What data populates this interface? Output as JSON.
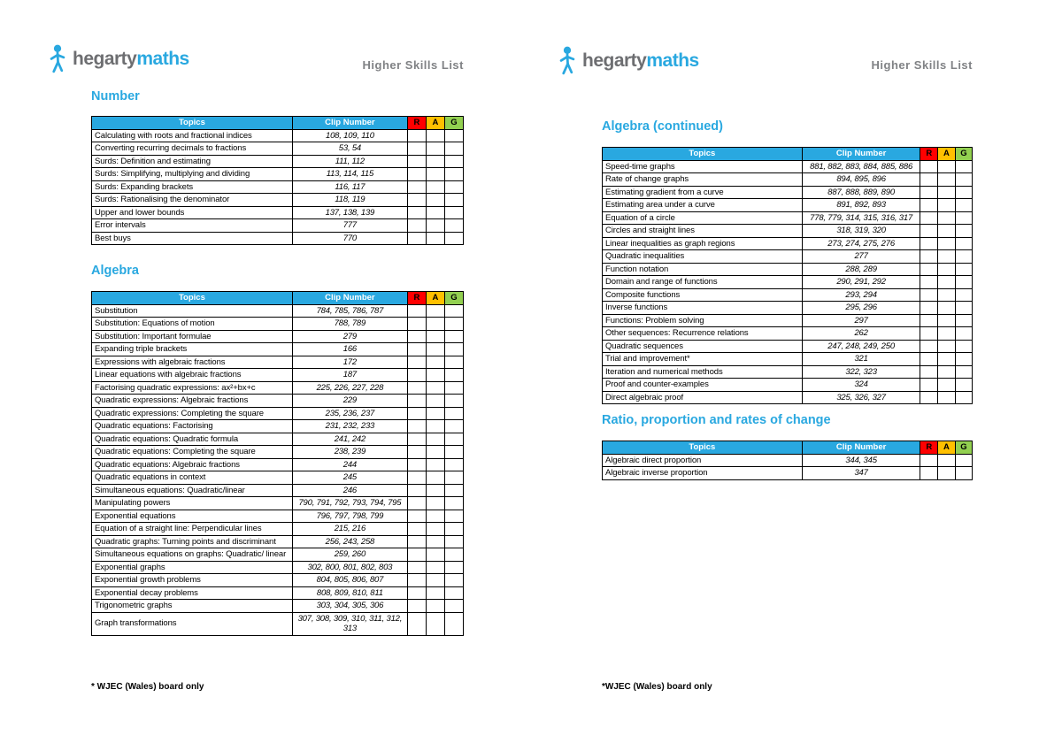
{
  "brand": {
    "word1": "hegarty",
    "word2": "maths"
  },
  "page_title": "Higher Skills List",
  "footer": {
    "left": "* WJEC (Wales) board only",
    "right": "*WJEC (Wales) board only"
  },
  "table_headers": {
    "topics": "Topics",
    "clip": "Clip Number",
    "r": "R",
    "a": "A",
    "g": "G"
  },
  "colors": {
    "brand_blue": "#29a8e0",
    "rag_red": "#ff0000",
    "rag_amber": "#ffc000",
    "rag_green": "#92d050",
    "title_gray": "#808285"
  },
  "sections": [
    {
      "title": "Number",
      "rows": [
        {
          "topic": "Calculating with roots and fractional indices",
          "clips": "108, 109, 110"
        },
        {
          "topic": "Converting recurring decimals to fractions",
          "clips": "53, 54"
        },
        {
          "topic": "Surds: Definition and estimating",
          "clips": "111, 112"
        },
        {
          "topic": "Surds: Simplifying, multiplying and dividing",
          "clips": "113, 114, 115"
        },
        {
          "topic": "Surds: Expanding brackets",
          "clips": "116, 117"
        },
        {
          "topic": "Surds: Rationalising the denominator",
          "clips": "118, 119"
        },
        {
          "topic": "Upper and lower bounds",
          "clips": "137, 138, 139"
        },
        {
          "topic": "Error intervals",
          "clips": "777"
        },
        {
          "topic": "Best buys",
          "clips": "770"
        }
      ]
    },
    {
      "title": "Algebra",
      "rows": [
        {
          "topic": "Substitution",
          "clips": "784, 785, 786, 787"
        },
        {
          "topic": "Substitution: Equations of motion",
          "clips": "788, 789"
        },
        {
          "topic": "Substitution: Important formulae",
          "clips": "279"
        },
        {
          "topic": "Expanding triple brackets",
          "clips": "166"
        },
        {
          "topic": "Expressions with algebraic fractions",
          "clips": "172"
        },
        {
          "topic": "Linear equations with algebraic fractions",
          "clips": "187"
        },
        {
          "topic": "Factorising quadratic expressions: ax²+bx+c",
          "clips": "225, 226, 227, 228"
        },
        {
          "topic": "Quadratic expressions: Algebraic fractions",
          "clips": "229"
        },
        {
          "topic": "Quadratic expressions: Completing the square",
          "clips": "235, 236, 237"
        },
        {
          "topic": "Quadratic equations: Factorising",
          "clips": "231, 232, 233"
        },
        {
          "topic": "Quadratic equations: Quadratic formula",
          "clips": "241, 242"
        },
        {
          "topic": "Quadratic equations: Completing the square",
          "clips": "238, 239"
        },
        {
          "topic": "Quadratic equations: Algebraic fractions",
          "clips": "244"
        },
        {
          "topic": "Quadratic equations in context",
          "clips": "245"
        },
        {
          "topic": "Simultaneous equations: Quadratic/linear",
          "clips": "246"
        },
        {
          "topic": "Manipulating powers",
          "clips": "790, 791, 792, 793, 794, 795"
        },
        {
          "topic": "Exponential equations",
          "clips": "796, 797, 798, 799"
        },
        {
          "topic": "Equation of a straight line: Perpendicular lines",
          "clips": "215, 216"
        },
        {
          "topic": "Quadratic graphs: Turning points and discriminant",
          "clips": "256, 243, 258"
        },
        {
          "topic": "Simultaneous equations on graphs: Quadratic/ linear",
          "clips": "259, 260"
        },
        {
          "topic": "Exponential graphs",
          "clips": "302, 800, 801, 802, 803"
        },
        {
          "topic": "Exponential growth problems",
          "clips": "804, 805, 806, 807"
        },
        {
          "topic": "Exponential decay problems",
          "clips": "808, 809, 810, 811"
        },
        {
          "topic": "Trigonometric graphs",
          "clips": "303, 304, 305, 306"
        },
        {
          "topic": "Graph transformations",
          "clips": "307, 308, 309, 310, 311, 312, 313"
        }
      ]
    },
    {
      "title": "Algebra (continued)",
      "rows": [
        {
          "topic": "Speed-time graphs",
          "clips": "881, 882, 883, 884, 885, 886"
        },
        {
          "topic": "Rate of change graphs",
          "clips": "894, 895, 896"
        },
        {
          "topic": "Estimating gradient from a curve",
          "clips": "887, 888, 889, 890"
        },
        {
          "topic": "Estimating area under a curve",
          "clips": "891, 892, 893"
        },
        {
          "topic": "Equation of a circle",
          "clips": "778, 779, 314, 315, 316, 317"
        },
        {
          "topic": "Circles and straight lines",
          "clips": "318, 319, 320"
        },
        {
          "topic": "Linear inequalities as graph regions",
          "clips": "273, 274, 275, 276"
        },
        {
          "topic": "Quadratic inequalities",
          "clips": "277"
        },
        {
          "topic": "Function notation",
          "clips": "288, 289"
        },
        {
          "topic": "Domain and range of functions",
          "clips": "290, 291, 292"
        },
        {
          "topic": "Composite functions",
          "clips": "293, 294"
        },
        {
          "topic": "Inverse functions",
          "clips": "295, 296"
        },
        {
          "topic": "Functions: Problem solving",
          "clips": "297"
        },
        {
          "topic": "Other sequences: Recurrence relations",
          "clips": "262"
        },
        {
          "topic": "Quadratic sequences",
          "clips": "247, 248, 249, 250"
        },
        {
          "topic": "Trial and improvement*",
          "clips": "321"
        },
        {
          "topic": "Iteration and numerical methods",
          "clips": "322, 323"
        },
        {
          "topic": "Proof and counter-examples",
          "clips": "324"
        },
        {
          "topic": "Direct algebraic proof",
          "clips": "325, 326, 327"
        }
      ]
    },
    {
      "title": "Ratio, proportion and rates of change",
      "rows": [
        {
          "topic": "Algebraic direct proportion",
          "clips": "344, 345"
        },
        {
          "topic": "Algebraic inverse proportion",
          "clips": "347"
        }
      ]
    }
  ]
}
